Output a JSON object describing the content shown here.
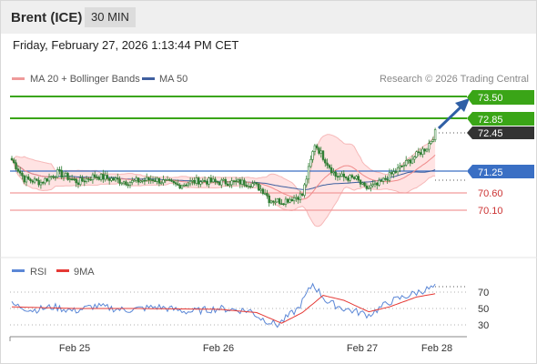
{
  "header": {
    "instrument": "Brent (ICE)",
    "timeframe": "30 MIN",
    "datetime": "Friday, February 27, 2026 1:13:44 PM CET"
  },
  "legend": {
    "ma20_label": "MA 20 + Bollinger Bands",
    "ma50_label": "MA 50",
    "research": "Research © 2026 Trading Central",
    "rsi_label": "RSI",
    "rsi_ma_label": "9MA"
  },
  "colors": {
    "candle": "#2e7d32",
    "ma20_bollinger": "#ef9a9a",
    "band_fill": "#ffe3e3",
    "ma50": "#3f5f9f",
    "resistance": "#3aa517",
    "support": "#f29a9a",
    "pivot": "#3a6fc4",
    "last_price_tag": "#333333",
    "rsi": "#5b87d6",
    "rsi_ma": "#e53935",
    "arrow": "#2f5fa5"
  },
  "levels": {
    "r2": "73.50",
    "r1": "72.85",
    "last": "72.45",
    "pivot": "71.25",
    "s1": "70.60",
    "s2": "70.10"
  },
  "rsi_ticks": [
    "70",
    "50",
    "30"
  ],
  "x_labels": [
    "Feb 25",
    "Feb 26",
    "Feb 27",
    "Feb 28"
  ],
  "chart_data": {
    "type": "candlestick",
    "interval": "30 MIN",
    "price_levels": [
      73.5,
      72.85,
      72.45,
      71.25,
      70.6,
      70.1
    ],
    "close_path": [
      [
        0,
        71.6
      ],
      [
        6,
        71.0
      ],
      [
        14,
        70.9
      ],
      [
        22,
        71.2
      ],
      [
        32,
        70.9
      ],
      [
        40,
        71.1
      ],
      [
        56,
        70.9
      ],
      [
        68,
        71.0
      ],
      [
        80,
        70.8
      ],
      [
        90,
        70.95
      ],
      [
        100,
        70.9
      ],
      [
        110,
        70.9
      ],
      [
        116,
        70.85
      ],
      [
        122,
        70.6
      ],
      [
        124,
        70.35
      ],
      [
        130,
        70.3
      ],
      [
        140,
        70.5
      ],
      [
        146,
        72.1
      ],
      [
        150,
        71.7
      ],
      [
        156,
        71.1
      ],
      [
        166,
        71.0
      ],
      [
        170,
        70.7
      ],
      [
        176,
        70.8
      ],
      [
        184,
        71.2
      ],
      [
        192,
        71.6
      ],
      [
        200,
        72.0
      ],
      [
        204,
        72.45
      ]
    ],
    "rsi": {
      "ticks": [
        70,
        50,
        30
      ],
      "path": [
        [
          0,
          55
        ],
        [
          10,
          48
        ],
        [
          20,
          52
        ],
        [
          30,
          47
        ],
        [
          40,
          53
        ],
        [
          55,
          48
        ],
        [
          70,
          52
        ],
        [
          85,
          46
        ],
        [
          100,
          50
        ],
        [
          115,
          47
        ],
        [
          120,
          38
        ],
        [
          128,
          30
        ],
        [
          138,
          50
        ],
        [
          145,
          80
        ],
        [
          152,
          58
        ],
        [
          160,
          50
        ],
        [
          172,
          42
        ],
        [
          182,
          58
        ],
        [
          190,
          65
        ],
        [
          198,
          72
        ],
        [
          204,
          76
        ]
      ]
    },
    "rsi_ma": {
      "path": [
        [
          0,
          52
        ],
        [
          30,
          50
        ],
        [
          60,
          50
        ],
        [
          100,
          49
        ],
        [
          118,
          45
        ],
        [
          130,
          32
        ],
        [
          140,
          45
        ],
        [
          150,
          66
        ],
        [
          160,
          60
        ],
        [
          172,
          46
        ],
        [
          182,
          52
        ],
        [
          195,
          64
        ],
        [
          204,
          68
        ]
      ]
    }
  }
}
